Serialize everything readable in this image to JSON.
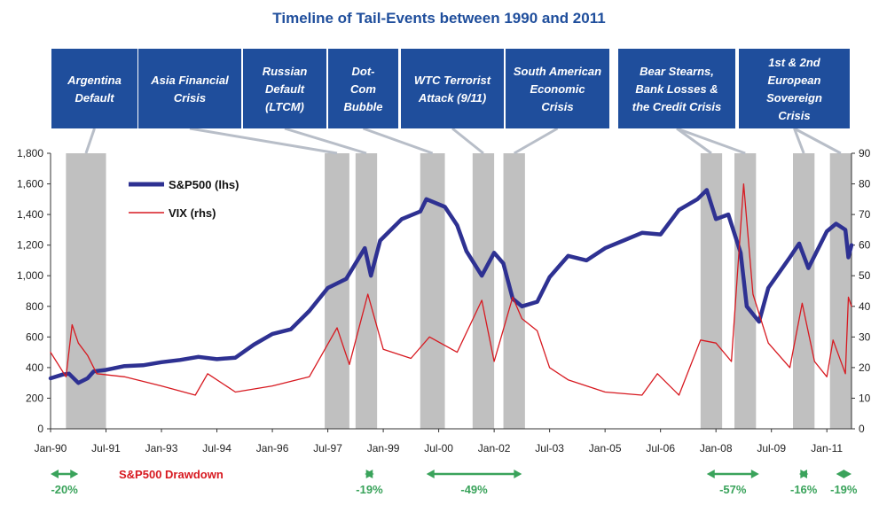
{
  "chart_data": {
    "type": "line",
    "title": "Timeline of Tail-Events between 1990 and 2011",
    "xlabel": "",
    "ylabel": "",
    "x_range": [
      "1990-01",
      "2011-09"
    ],
    "x_ticks": [
      "Jan-90",
      "Jul-91",
      "Jan-93",
      "Jul-94",
      "Jan-96",
      "Jul-97",
      "Jan-99",
      "Jul-00",
      "Jan-02",
      "Jul-03",
      "Jan-05",
      "Jul-06",
      "Jan-08",
      "Jul-09",
      "Jan-11"
    ],
    "y_left": {
      "min": 0,
      "max": 1800,
      "ticks": [
        "0",
        "200",
        "400",
        "600",
        "800",
        "1,000",
        "1,200",
        "1,400",
        "1,600",
        "1,800"
      ]
    },
    "y_right": {
      "min": 0,
      "max": 90,
      "ticks": [
        "0",
        "10",
        "20",
        "30",
        "40",
        "50",
        "60",
        "70",
        "80",
        "90"
      ]
    },
    "legend_placement": "top-left",
    "series": [
      {
        "name": "S&P500 (lhs)",
        "axis": "left",
        "color": "#2e3192",
        "points": [
          [
            "1990-01",
            330
          ],
          [
            "1990-05",
            355
          ],
          [
            "1990-07",
            360
          ],
          [
            "1990-10",
            300
          ],
          [
            "1991-01",
            330
          ],
          [
            "1991-03",
            375
          ],
          [
            "1991-07",
            385
          ],
          [
            "1992-01",
            410
          ],
          [
            "1992-07",
            415
          ],
          [
            "1993-01",
            435
          ],
          [
            "1993-07",
            450
          ],
          [
            "1994-01",
            470
          ],
          [
            "1994-07",
            455
          ],
          [
            "1995-01",
            465
          ],
          [
            "1995-07",
            550
          ],
          [
            "1996-01",
            620
          ],
          [
            "1996-07",
            650
          ],
          [
            "1997-01",
            770
          ],
          [
            "1997-07",
            920
          ],
          [
            "1997-10",
            950
          ],
          [
            "1998-01",
            980
          ],
          [
            "1998-07",
            1180
          ],
          [
            "1998-09",
            1000
          ],
          [
            "1998-12",
            1230
          ],
          [
            "1999-07",
            1370
          ],
          [
            "2000-01",
            1420
          ],
          [
            "2000-03",
            1500
          ],
          [
            "2000-09",
            1450
          ],
          [
            "2001-01",
            1330
          ],
          [
            "2001-04",
            1160
          ],
          [
            "2001-09",
            1000
          ],
          [
            "2002-01",
            1150
          ],
          [
            "2002-04",
            1080
          ],
          [
            "2002-07",
            850
          ],
          [
            "2002-10",
            800
          ],
          [
            "2003-03",
            830
          ],
          [
            "2003-07",
            990
          ],
          [
            "2004-01",
            1130
          ],
          [
            "2004-07",
            1100
          ],
          [
            "2005-01",
            1180
          ],
          [
            "2005-07",
            1230
          ],
          [
            "2006-01",
            1280
          ],
          [
            "2006-07",
            1270
          ],
          [
            "2007-01",
            1430
          ],
          [
            "2007-07",
            1500
          ],
          [
            "2007-10",
            1560
          ],
          [
            "2008-01",
            1370
          ],
          [
            "2008-05",
            1400
          ],
          [
            "2008-09",
            1150
          ],
          [
            "2008-11",
            800
          ],
          [
            "2009-03",
            700
          ],
          [
            "2009-06",
            920
          ],
          [
            "2010-01",
            1120
          ],
          [
            "2010-04",
            1210
          ],
          [
            "2010-07",
            1050
          ],
          [
            "2011-01",
            1290
          ],
          [
            "2011-04",
            1340
          ],
          [
            "2011-07",
            1300
          ],
          [
            "2011-08",
            1120
          ],
          [
            "2011-09",
            1200
          ]
        ]
      },
      {
        "name": "VIX (rhs)",
        "axis": "right",
        "color": "#d71920",
        "points": [
          [
            "1990-01",
            25
          ],
          [
            "1990-06",
            17
          ],
          [
            "1990-08",
            34
          ],
          [
            "1990-10",
            28
          ],
          [
            "1991-01",
            24
          ],
          [
            "1991-04",
            18
          ],
          [
            "1992-01",
            17
          ],
          [
            "1993-01",
            14
          ],
          [
            "1993-12",
            11
          ],
          [
            "1994-04",
            18
          ],
          [
            "1995-01",
            12
          ],
          [
            "1996-01",
            14
          ],
          [
            "1997-01",
            17
          ],
          [
            "1997-10",
            33
          ],
          [
            "1998-02",
            21
          ],
          [
            "1998-08",
            44
          ],
          [
            "1999-01",
            26
          ],
          [
            "1999-10",
            23
          ],
          [
            "2000-04",
            30
          ],
          [
            "2001-01",
            25
          ],
          [
            "2001-09",
            42
          ],
          [
            "2002-01",
            22
          ],
          [
            "2002-07",
            43
          ],
          [
            "2002-10",
            36
          ],
          [
            "2003-03",
            32
          ],
          [
            "2003-07",
            20
          ],
          [
            "2004-01",
            16
          ],
          [
            "2005-01",
            12
          ],
          [
            "2006-01",
            11
          ],
          [
            "2006-06",
            18
          ],
          [
            "2007-01",
            11
          ],
          [
            "2007-08",
            29
          ],
          [
            "2008-01",
            28
          ],
          [
            "2008-06",
            22
          ],
          [
            "2008-10",
            80
          ],
          [
            "2009-01",
            44
          ],
          [
            "2009-06",
            28
          ],
          [
            "2010-01",
            20
          ],
          [
            "2010-05",
            41
          ],
          [
            "2010-09",
            22
          ],
          [
            "2011-01",
            17
          ],
          [
            "2011-03",
            29
          ],
          [
            "2011-07",
            18
          ],
          [
            "2011-08",
            43
          ],
          [
            "2011-09",
            40
          ]
        ]
      }
    ],
    "events": [
      {
        "label": "Argentina Default",
        "lines": [
          "Argentina",
          "Default"
        ],
        "shade": [
          "1990-06",
          "1991-07"
        ]
      },
      {
        "label": "Asia Financial Crisis",
        "lines": [
          "Asia Financial",
          "Crisis"
        ],
        "shade": [
          "1997-06",
          "1998-02"
        ]
      },
      {
        "label": "Russian Default (LTCM)",
        "lines": [
          "Russian",
          "Default",
          "(LTCM)"
        ],
        "shade": [
          "1998-04",
          "1998-11"
        ]
      },
      {
        "label": "Dot-Com Bubble",
        "lines": [
          "Dot-",
          "Com",
          "Bubble"
        ],
        "shade": [
          "2000-01",
          "2000-09"
        ]
      },
      {
        "label": "WTC Terrorist Attack (9/11)",
        "lines": [
          "WTC Terrorist",
          "Attack (9/11)"
        ],
        "shade": [
          "2001-06",
          "2002-01"
        ]
      },
      {
        "label": "South American Economic Crisis",
        "lines": [
          "South American",
          "Economic",
          "Crisis"
        ],
        "shade": [
          "2002-04",
          "2002-11"
        ]
      },
      {
        "label": "Bear Stearns, Bank Losses & the Credit Crisis",
        "lines": [
          "Bear Stearns,",
          "Bank Losses &",
          "the Credit Crisis"
        ],
        "shade": [
          [
            "2007-08",
            "2008-03"
          ],
          [
            "2008-07",
            "2009-02"
          ]
        ]
      },
      {
        "label": "1st & 2nd European Sovereign Crisis",
        "lines": [
          "1st & 2nd",
          "European",
          "Sovereign",
          "Crisis"
        ],
        "shade": [
          [
            "2010-02",
            "2010-09"
          ],
          [
            "2011-02",
            "2011-09"
          ]
        ]
      }
    ],
    "drawdown_label": "S&P500 Drawdown",
    "drawdowns": [
      {
        "label": "-20%",
        "start": "1990-01",
        "end": "1990-10"
      },
      {
        "label": "-19%",
        "start": "1998-07",
        "end": "1998-10"
      },
      {
        "label": "-49%",
        "start": "2000-03",
        "end": "2002-10"
      },
      {
        "label": "-57%",
        "start": "2007-10",
        "end": "2009-03"
      },
      {
        "label": "-16%",
        "start": "2010-04",
        "end": "2010-07"
      },
      {
        "label": "-19%",
        "start": "2011-04",
        "end": "2011-10"
      }
    ],
    "colors": {
      "event_box": "#1f4e9c",
      "shade": "#c0c0c0",
      "connector": "#b8bec8",
      "drawdown_arrow": "#3aa35b",
      "drawdown_label": "#d71920",
      "title": "#1f4e9c"
    }
  }
}
